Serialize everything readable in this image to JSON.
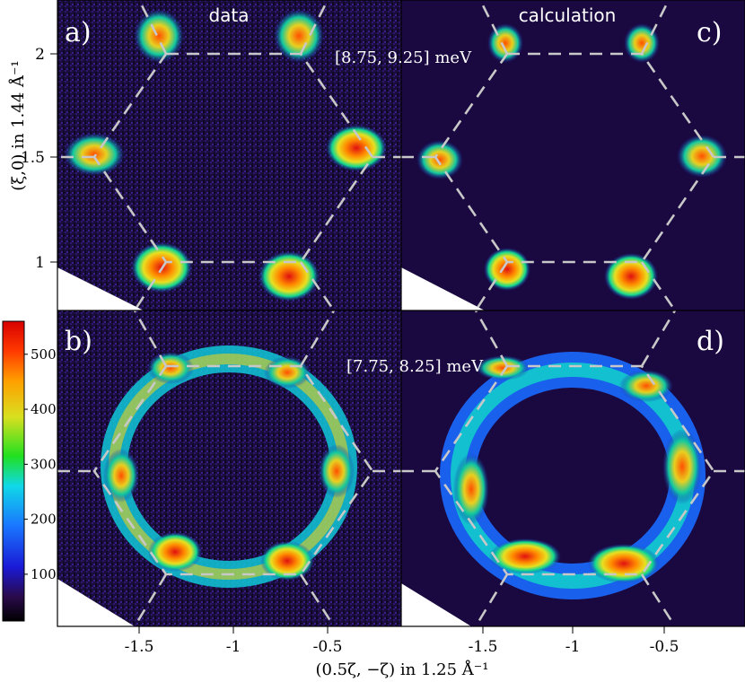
{
  "chart_data": {
    "type": "heatmap",
    "xlabel": "(0.5ζ, −ζ) in 1.25 Å⁻¹",
    "ylabel": "(ξ,0) in 1.44 Å⁻¹",
    "x_ticks": [
      "-1.5",
      "-1",
      "-0.5"
    ],
    "x_tick_values": [
      -1.5,
      -1,
      -0.5
    ],
    "y_ticks": [
      "2",
      "1.5",
      "1"
    ],
    "y_tick_values": [
      2,
      1.5,
      1
    ],
    "colorbar": {
      "colormap": "jet",
      "min": 15,
      "max": 560,
      "ticks": [
        "500",
        "400",
        "300",
        "200",
        "100"
      ],
      "tick_values": [
        500,
        400,
        300,
        200,
        100
      ]
    },
    "column_titles": [
      "data",
      "calculation"
    ],
    "panels": [
      {
        "label": "a)",
        "kind": "data",
        "energy": "[8.75, 9.25] meV"
      },
      {
        "label": "c)",
        "kind": "calculation"
      },
      {
        "label": "b)",
        "kind": "data",
        "energy": "[7.75, 8.25] meV"
      },
      {
        "label": "d)",
        "kind": "calculation"
      }
    ],
    "guide_lines": {
      "style": "dashed",
      "color": "#c8c8c8",
      "shape": "hexagonal zone boundaries"
    }
  }
}
